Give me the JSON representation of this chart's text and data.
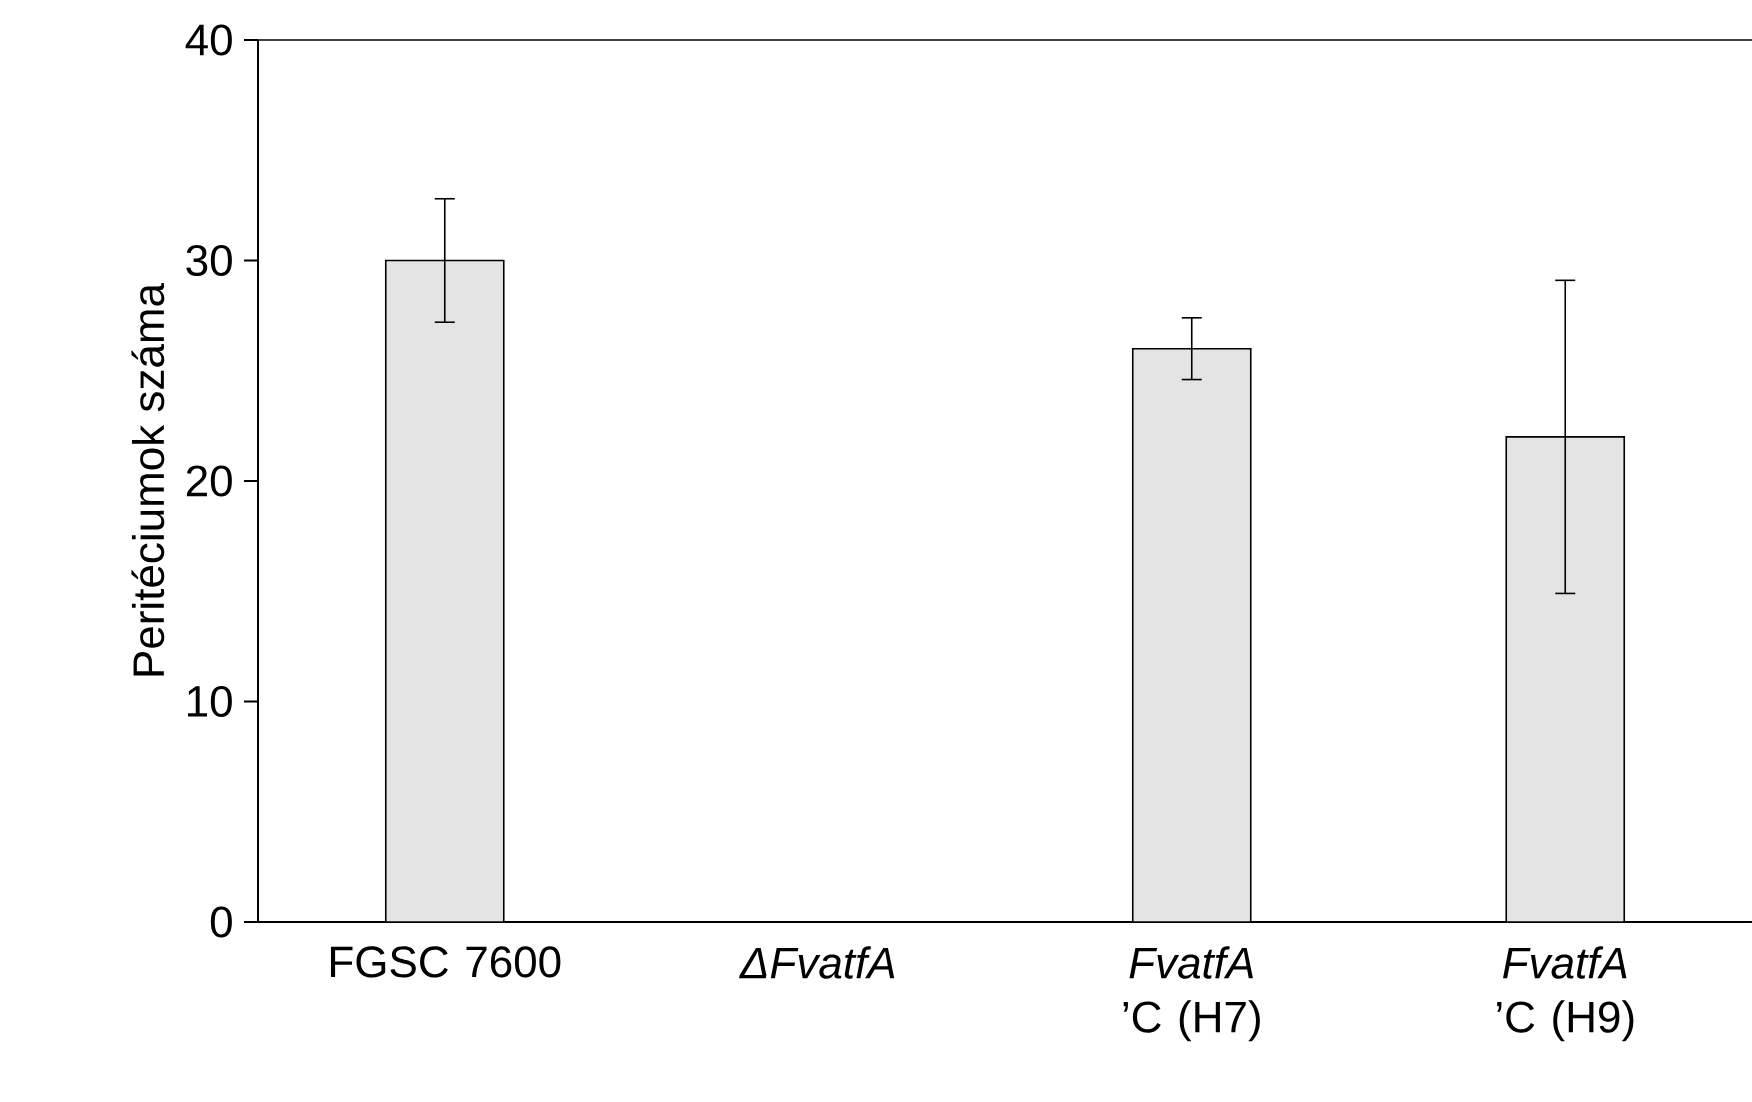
{
  "chart_data": {
    "type": "bar",
    "ylabel": "Peritéciumok száma",
    "categories": [
      "FGSC 7600",
      "*ΔFvatfA*",
      "*FvatfA* ’C (H7)",
      "*FvatfA* ’C (H9)"
    ],
    "values": [
      30,
      0,
      26,
      22
    ],
    "errors": [
      2.8,
      null,
      1.4,
      7.1
    ],
    "color": "#e5e4e5",
    "ylim": [
      0,
      40
    ],
    "yticks": [
      0,
      10,
      20,
      30,
      40
    ],
    "grid": false
  }
}
